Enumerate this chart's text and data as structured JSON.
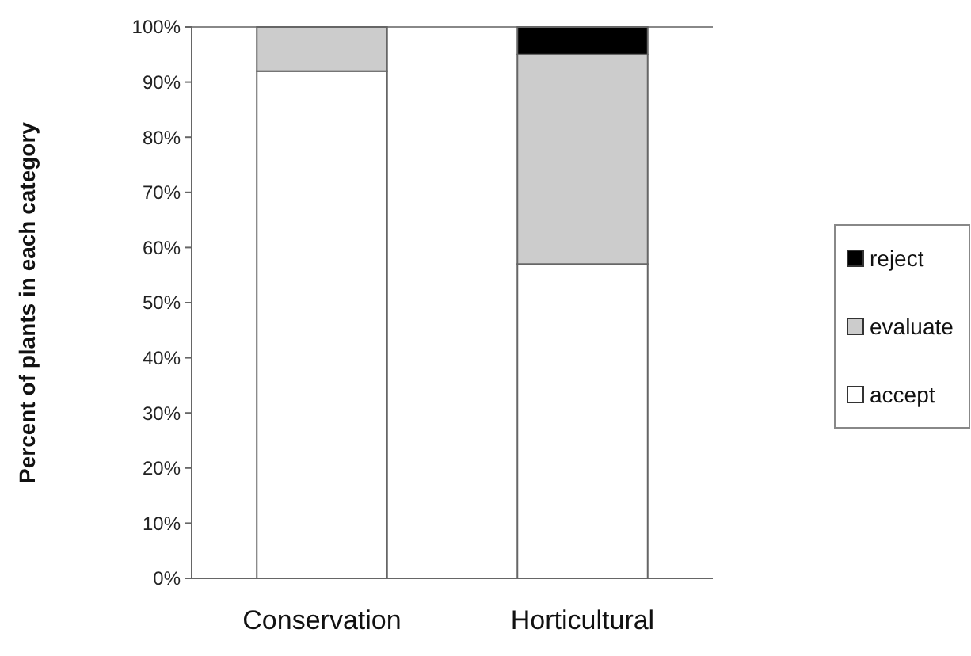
{
  "chart_data": {
    "type": "bar",
    "stacked": true,
    "ylabel": "Percent of plants in each category",
    "categories": [
      "Conservation",
      "Horticultural"
    ],
    "series": [
      {
        "name": "accept",
        "color": "#ffffff",
        "values": [
          92,
          57
        ]
      },
      {
        "name": "evaluate",
        "color": "#cccccc",
        "values": [
          8,
          38
        ]
      },
      {
        "name": "reject",
        "color": "#000000",
        "values": [
          null,
          5
        ]
      }
    ],
    "ylim": [
      0,
      100
    ],
    "yticks": [
      {
        "value": 0,
        "label": "0%"
      },
      {
        "value": 10,
        "label": "10%"
      },
      {
        "value": 20,
        "label": "20%"
      },
      {
        "value": 30,
        "label": "30%"
      },
      {
        "value": 40,
        "label": "40%"
      },
      {
        "value": 50,
        "label": "50%"
      },
      {
        "value": 60,
        "label": "60%"
      },
      {
        "value": 70,
        "label": "70%"
      },
      {
        "value": 80,
        "label": "80%"
      },
      {
        "value": 90,
        "label": "90%"
      },
      {
        "value": 100,
        "label": "100%"
      }
    ],
    "grid": false,
    "legend": "right"
  }
}
